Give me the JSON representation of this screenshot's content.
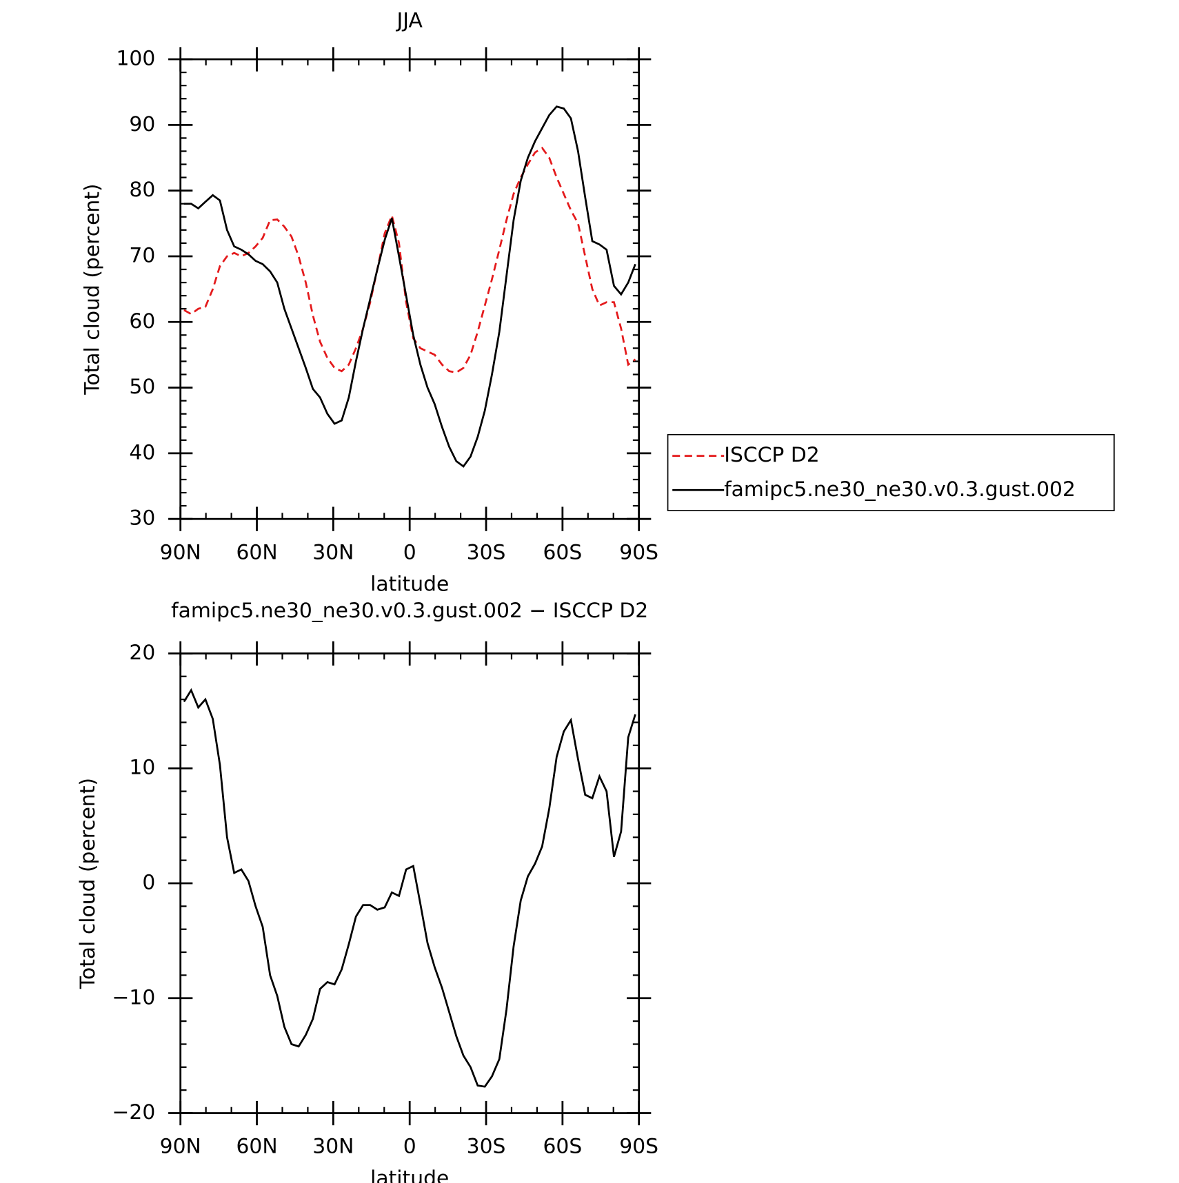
{
  "chart_data": [
    {
      "type": "line",
      "title": "JJA",
      "xlabel": "latitude",
      "ylabel": "Total cloud (percent)",
      "x": [
        88.6,
        85.8,
        83.0,
        80.2,
        77.3,
        74.5,
        71.7,
        68.9,
        66.1,
        63.3,
        60.5,
        57.7,
        54.8,
        52.0,
        49.2,
        46.4,
        43.6,
        40.8,
        38.0,
        35.2,
        32.3,
        29.5,
        26.7,
        23.9,
        21.1,
        18.3,
        15.5,
        12.7,
        9.8,
        7.0,
        4.2,
        1.4,
        -1.4,
        -4.2,
        -7.0,
        -9.8,
        -12.7,
        -15.5,
        -18.3,
        -21.1,
        -23.9,
        -26.7,
        -29.5,
        -32.3,
        -35.2,
        -38.0,
        -40.8,
        -43.6,
        -46.4,
        -49.2,
        -52.0,
        -54.8,
        -57.7,
        -60.5,
        -63.3,
        -66.1,
        -68.9,
        -71.7,
        -74.5,
        -77.3,
        -80.2,
        -83.0,
        -85.8,
        -88.6
      ],
      "series": [
        {
          "name": "ISCCP D2",
          "color": "#e41a1c",
          "dash": true,
          "values": [
            61.8,
            61.2,
            62,
            62.3,
            65,
            68.5,
            70,
            70.5,
            70,
            70.5,
            71.5,
            72.8,
            75.5,
            75.6,
            74.5,
            73,
            70,
            66,
            61,
            57,
            54.5,
            53,
            52.5,
            53.5,
            56,
            59,
            63,
            68,
            73.5,
            76.2,
            72,
            63,
            57.5,
            56,
            55.5,
            55,
            53.5,
            52.5,
            52.3,
            53,
            55,
            58.5,
            62.5,
            66.5,
            71,
            75.5,
            79.5,
            82,
            84,
            85.8,
            86.5,
            85,
            82,
            79.5,
            77,
            75,
            70,
            65,
            62.5,
            63,
            63,
            59,
            53.5,
            54.3
          ]
        },
        {
          "name": "famipc5.ne30_ne30.v0.3.gust.002",
          "color": "#000000",
          "dash": false,
          "values": [
            78,
            78,
            77.3,
            78.3,
            79.3,
            78.5,
            74,
            71.5,
            71,
            70.3,
            69.3,
            68.8,
            67.7,
            66,
            62,
            59,
            56,
            53,
            49.8,
            48.5,
            46,
            44.5,
            45,
            48.5,
            54,
            59,
            63.5,
            68,
            72.5,
            75.8,
            70,
            64,
            58,
            53.5,
            50,
            47.5,
            44,
            41,
            38.8,
            38,
            39.5,
            42.5,
            46.5,
            52,
            58.5,
            67,
            75.5,
            81.5,
            85,
            87.5,
            89.5,
            91.5,
            92.8,
            92.5,
            91,
            86,
            79,
            72.3,
            71.8,
            71,
            65.5,
            64.2,
            66,
            68.8
          ]
        }
      ],
      "xlim": [
        90,
        -90
      ],
      "xticks": [
        {
          "value": 90,
          "label": "90N"
        },
        {
          "value": 60,
          "label": "60N"
        },
        {
          "value": 30,
          "label": "30N"
        },
        0,
        {
          "value": -30,
          "label": "30S"
        },
        {
          "value": -60,
          "label": "60S"
        },
        {
          "value": -90,
          "label": "90S"
        }
      ],
      "ylim": [
        30,
        100
      ],
      "yticks": [
        30,
        40,
        50,
        60,
        70,
        80,
        90,
        100
      ],
      "legend": "right"
    },
    {
      "type": "line",
      "title": "famipc5.ne30_ne30.v0.3.gust.002 − ISCCP D2",
      "xlabel": "latitude",
      "ylabel": "Total cloud (percent)",
      "x": [
        88.6,
        85.8,
        83.0,
        80.2,
        77.3,
        74.5,
        71.7,
        68.9,
        66.1,
        63.3,
        60.5,
        57.7,
        54.8,
        52.0,
        49.2,
        46.4,
        43.6,
        40.8,
        38.0,
        35.2,
        32.3,
        29.5,
        26.7,
        23.9,
        21.1,
        18.3,
        15.5,
        12.7,
        9.8,
        7.0,
        4.2,
        1.4,
        -1.4,
        -4.2,
        -7.0,
        -9.8,
        -12.7,
        -15.5,
        -18.3,
        -21.1,
        -23.9,
        -26.7,
        -29.5,
        -32.3,
        -35.2,
        -38.0,
        -40.8,
        -43.6,
        -46.4,
        -49.2,
        -52.0,
        -54.8,
        -57.7,
        -60.5,
        -63.3,
        -66.1,
        -68.9,
        -71.7,
        -74.5,
        -77.3,
        -80.2,
        -83.0,
        -85.8,
        -88.6
      ],
      "series": [
        {
          "color": "#000000",
          "dash": false,
          "values": [
            15.8,
            16.8,
            15.3,
            16,
            14.3,
            10.3,
            4,
            0.9,
            1.2,
            0.2,
            -2,
            -3.8,
            -8,
            -9.8,
            -12.5,
            -14,
            -14.2,
            -13.2,
            -11.8,
            -9.2,
            -8.6,
            -8.8,
            -7.5,
            -5.3,
            -2.9,
            -1.9,
            -1.9,
            -2.3,
            -2.1,
            -0.8,
            -1.1,
            1.2,
            1.5,
            -1.8,
            -5.2,
            -7.3,
            -9.1,
            -11.2,
            -13.3,
            -15,
            -16,
            -17.6,
            -17.7,
            -16.8,
            -15.3,
            -11,
            -5.5,
            -1.5,
            0.6,
            1.7,
            3.2,
            6.5,
            11,
            13.2,
            14.2,
            10.8,
            7.7,
            7.4,
            9.3,
            8,
            2.3,
            4.5,
            12.7,
            14.7
          ]
        }
      ],
      "xlim": [
        90,
        -90
      ],
      "xticks": [
        {
          "value": 90,
          "label": "90N"
        },
        {
          "value": 60,
          "label": "60N"
        },
        {
          "value": 30,
          "label": "30N"
        },
        0,
        {
          "value": -30,
          "label": "30S"
        },
        {
          "value": -60,
          "label": "60S"
        },
        {
          "value": -90,
          "label": "90S"
        }
      ],
      "ylim": [
        -20,
        20
      ],
      "yticks": [
        {
          "value": -20,
          "label": "−20"
        },
        {
          "value": -10,
          "label": "−10"
        },
        0,
        10,
        20
      ]
    }
  ]
}
